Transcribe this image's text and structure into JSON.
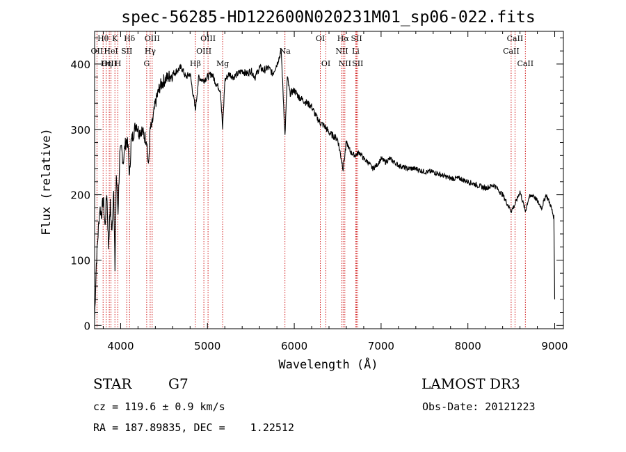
{
  "chart_data": {
    "type": "line",
    "title": "spec-56285-HD122600N020231M01_sp06-022.fits",
    "xlabel": "Wavelength (Å)",
    "ylabel": "Flux (relative)",
    "xlim": [
      3700,
      9100
    ],
    "ylim": [
      -5,
      450
    ],
    "xticks": [
      4000,
      5000,
      6000,
      7000,
      8000,
      9000
    ],
    "yticks": [
      0,
      100,
      200,
      300,
      400
    ],
    "series": [
      {
        "name": "spectrum",
        "x": [
          3700,
          3720,
          3740,
          3760,
          3780,
          3800,
          3820,
          3840,
          3860,
          3880,
          3900,
          3920,
          3935,
          3950,
          3970,
          3990,
          4010,
          4030,
          4050,
          4070,
          4090,
          4102,
          4120,
          4150,
          4180,
          4210,
          4240,
          4270,
          4300,
          4320,
          4340,
          4360,
          4400,
          4450,
          4500,
          4550,
          4600,
          4650,
          4700,
          4750,
          4800,
          4861,
          4900,
          4950,
          5000,
          5050,
          5100,
          5150,
          5175,
          5200,
          5250,
          5300,
          5350,
          5400,
          5450,
          5500,
          5550,
          5600,
          5650,
          5700,
          5750,
          5800,
          5850,
          5893,
          5920,
          5950,
          6000,
          6050,
          6100,
          6150,
          6200,
          6250,
          6300,
          6350,
          6400,
          6450,
          6500,
          6563,
          6600,
          6650,
          6700,
          6750,
          6800,
          6850,
          6900,
          6950,
          7000,
          7050,
          7100,
          7150,
          7200,
          7300,
          7400,
          7500,
          7600,
          7700,
          7800,
          7900,
          8000,
          8100,
          8200,
          8300,
          8400,
          8498,
          8542,
          8600,
          8662,
          8700,
          8750,
          8800,
          8850,
          8900,
          8950,
          8990,
          9000
        ],
        "y": [
          10,
          95,
          140,
          180,
          170,
          195,
          150,
          205,
          120,
          185,
          140,
          215,
          80,
          230,
          175,
          260,
          270,
          250,
          275,
          285,
          265,
          225,
          280,
          295,
          310,
          295,
          300,
          290,
          285,
          240,
          300,
          305,
          340,
          365,
          375,
          380,
          385,
          390,
          395,
          380,
          385,
          330,
          380,
          375,
          380,
          385,
          370,
          360,
          300,
          375,
          385,
          380,
          385,
          390,
          385,
          390,
          380,
          395,
          390,
          395,
          385,
          400,
          420,
          290,
          380,
          355,
          360,
          350,
          345,
          340,
          335,
          320,
          310,
          305,
          295,
          290,
          285,
          240,
          280,
          265,
          260,
          265,
          255,
          250,
          240,
          245,
          255,
          250,
          255,
          250,
          245,
          240,
          240,
          235,
          235,
          230,
          225,
          225,
          220,
          215,
          210,
          215,
          200,
          175,
          185,
          205,
          175,
          195,
          200,
          190,
          180,
          200,
          185,
          165,
          40
        ]
      }
    ],
    "emission_lines": [
      {
        "label": "Hθ",
        "wl": 3798,
        "row": 0
      },
      {
        "label": "OII",
        "wl": 3727,
        "row": 1
      },
      {
        "label": "OIII",
        "wl": 3869,
        "row": 2
      },
      {
        "label": "K",
        "wl": 3934,
        "row": 0
      },
      {
        "label": "HeI",
        "wl": 3889,
        "row": 1
      },
      {
        "label": "Hη",
        "wl": 3835,
        "row": 2
      },
      {
        "label": "Hδ",
        "wl": 4102,
        "row": 0
      },
      {
        "label": "SII",
        "wl": 4070,
        "row": 1
      },
      {
        "label": "H",
        "wl": 3968,
        "row": 2
      },
      {
        "label": "OIII",
        "wl": 4363,
        "row": 0
      },
      {
        "label": "Hγ",
        "wl": 4340,
        "row": 1
      },
      {
        "label": "G",
        "wl": 4300,
        "row": 2
      },
      {
        "label": "Hβ",
        "wl": 4861,
        "row": 2
      },
      {
        "label": "OIII",
        "wl": 5007,
        "row": 0
      },
      {
        "label": "OIII",
        "wl": 4959,
        "row": 1
      },
      {
        "label": "Mg",
        "wl": 5175,
        "row": 2
      },
      {
        "label": "Na",
        "wl": 5893,
        "row": 1
      },
      {
        "label": "OI",
        "wl": 6300,
        "row": 0
      },
      {
        "label": "OI",
        "wl": 6364,
        "row": 2
      },
      {
        "label": "Hα",
        "wl": 6563,
        "row": 0
      },
      {
        "label": "NII",
        "wl": 6548,
        "row": 1
      },
      {
        "label": "NII",
        "wl": 6583,
        "row": 2
      },
      {
        "label": "SII",
        "wl": 6717,
        "row": 0
      },
      {
        "label": "Li",
        "wl": 6708,
        "row": 1
      },
      {
        "label": "SII",
        "wl": 6731,
        "row": 2
      },
      {
        "label": "CaII",
        "wl": 8542,
        "row": 0
      },
      {
        "label": "CaII",
        "wl": 8498,
        "row": 1
      },
      {
        "label": "CaII",
        "wl": 8662,
        "row": 2
      }
    ]
  },
  "info": {
    "object_class": "STAR",
    "subclass": "G7",
    "survey": "LAMOST DR3",
    "cz": "cz = 119.6 ± 0.9 km/s",
    "obs_date": "Obs-Date: 20121223",
    "coords": "RA = 187.89835, DEC =    1.22512"
  },
  "colors": {
    "line": "#000000",
    "marker": "#cc0000"
  }
}
